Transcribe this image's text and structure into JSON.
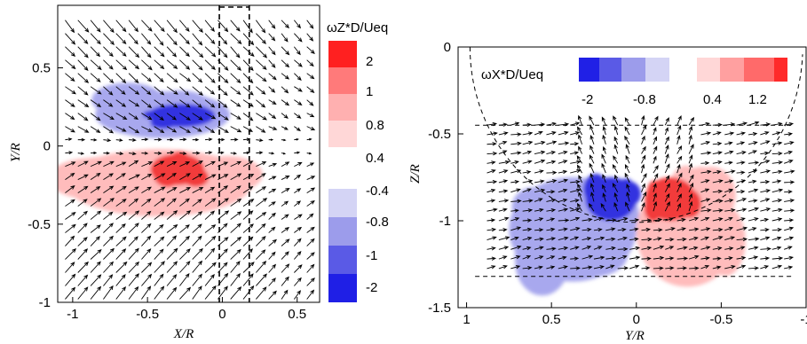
{
  "chart_data": [
    {
      "type": "heatmap",
      "title": "",
      "xlabel": "X/R",
      "ylabel": "Y/R",
      "xlim": [
        -1.1,
        0.65
      ],
      "ylim": [
        -1.0,
        0.9
      ],
      "x_ticks": [
        "-1",
        "-0.5",
        "0",
        "0.5"
      ],
      "x_tick_values": [
        -1,
        -0.5,
        0,
        0.5
      ],
      "y_ticks": [
        "0.5",
        "0",
        "-0.5",
        "-1"
      ],
      "y_tick_values": [
        0.5,
        0,
        -0.5,
        -1
      ],
      "overlay": "velocity vectors",
      "colorbar": {
        "title": "ωZ*D/Ueq",
        "labels": [
          "2",
          "1",
          "0.8",
          "0.4",
          "-0.4",
          "-0.8",
          "-1",
          "-2"
        ],
        "colors": [
          "#ff2020",
          "#ff7a7a",
          "#ffb0b0",
          "#ffd7d7",
          "#d4d4f5",
          "#9c9ceb",
          "#5a5ae6",
          "#1f1fe6"
        ]
      },
      "regions": [
        {
          "sign": "negative",
          "level": -0.4,
          "x_range": [
            -0.85,
            0.05
          ],
          "y_range": [
            0.05,
            0.35
          ]
        },
        {
          "sign": "negative",
          "level": -1.0,
          "x_range": [
            -0.5,
            -0.05
          ],
          "y_range": [
            0.12,
            0.27
          ]
        },
        {
          "sign": "positive",
          "level": 0.4,
          "x_range": [
            -1.05,
            0.2
          ],
          "y_range": [
            -0.45,
            -0.02
          ]
        },
        {
          "sign": "positive",
          "level": 1.0,
          "x_range": [
            -0.48,
            -0.12
          ],
          "y_range": [
            -0.25,
            -0.05
          ]
        }
      ]
    },
    {
      "type": "heatmap",
      "title": "",
      "xlabel": "Y/R",
      "ylabel": "Z/R",
      "xlim": [
        1.05,
        -1.0
      ],
      "ylim": [
        -1.5,
        0.0
      ],
      "x_ticks": [
        "1",
        "0.5",
        "0",
        "-0.5",
        "-1"
      ],
      "x_tick_values": [
        1,
        0.5,
        0,
        -0.5,
        -1
      ],
      "y_ticks": [
        "0",
        "-0.5",
        "-1",
        "-1.5"
      ],
      "y_tick_values": [
        0,
        -0.5,
        -1,
        -1.5
      ],
      "overlay": "velocity vectors",
      "colorbar": {
        "title": "ωX*D/Ueq",
        "labels": [
          "-2",
          "-0.8",
          "0.4",
          "1.2"
        ],
        "colors": [
          "#2020e6",
          "#5a5ae6",
          "#9c9ceb",
          "#d4d4f5",
          "#ffffff",
          "#ffd7d7",
          "#ffa0a0",
          "#ff6a6a",
          "#ff2a2a"
        ]
      },
      "regions": [
        {
          "sign": "negative",
          "level": -0.4,
          "x_range": [
            0.75,
            0.0
          ],
          "y_range": [
            -1.35,
            -0.75
          ]
        },
        {
          "sign": "negative",
          "level": -1.2,
          "x_range": [
            0.3,
            0.0
          ],
          "y_range": [
            -1.0,
            -0.75
          ]
        },
        {
          "sign": "positive",
          "level": 0.4,
          "x_range": [
            0.0,
            -0.6
          ],
          "y_range": [
            -1.38,
            -0.75
          ]
        },
        {
          "sign": "positive",
          "level": 1.2,
          "x_range": [
            -0.05,
            -0.35
          ],
          "y_range": [
            -1.0,
            -0.75
          ]
        }
      ]
    }
  ]
}
